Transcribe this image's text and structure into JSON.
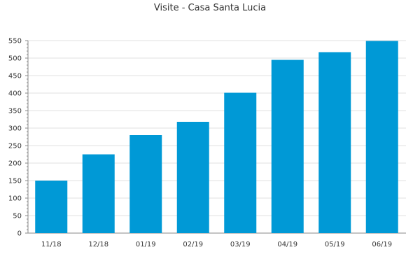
{
  "chart_data": {
    "type": "bar",
    "title": "Visite - Casa Santa Lucia",
    "xlabel": "",
    "ylabel": "",
    "categories": [
      "11/18",
      "12/18",
      "01/19",
      "02/19",
      "03/19",
      "04/19",
      "05/19",
      "06/19"
    ],
    "values": [
      150,
      225,
      280,
      318,
      401,
      495,
      517,
      549
    ],
    "ylim": [
      0,
      550
    ],
    "y_ticks": [
      0,
      50,
      100,
      150,
      200,
      250,
      300,
      350,
      400,
      450,
      500,
      550
    ],
    "grid": true,
    "legend": "none",
    "colors": {
      "bar": "#0099d6",
      "grid": "#e0e0e0",
      "axis": "#888888"
    }
  }
}
